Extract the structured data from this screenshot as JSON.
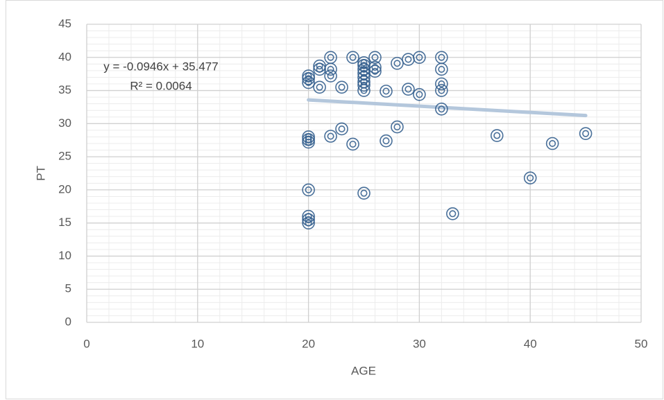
{
  "chart_data": {
    "type": "scatter",
    "x_label": "AGE",
    "y_label": "PT",
    "x": [
      20,
      20,
      20,
      20,
      20,
      20,
      20,
      20,
      20,
      20,
      21,
      21,
      21,
      22,
      22,
      22,
      22,
      23,
      23,
      24,
      24,
      25,
      25,
      25,
      25,
      25,
      25,
      25,
      25,
      25,
      26,
      26,
      26,
      27,
      27,
      28,
      28,
      29,
      29,
      30,
      30,
      32,
      32,
      32,
      32,
      32,
      33,
      37,
      40,
      42,
      45
    ],
    "values": [
      37.2,
      36.8,
      36.2,
      28,
      27.6,
      27.2,
      20,
      16,
      15.5,
      15,
      38.7,
      38.2,
      35.5,
      40,
      38.2,
      37.2,
      28.1,
      35.5,
      29.2,
      40,
      26.9,
      39.2,
      38.8,
      38.2,
      37.6,
      37,
      36.3,
      35.8,
      35,
      19.5,
      40,
      38.5,
      37.9,
      34.9,
      27.4,
      39.1,
      29.5,
      39.7,
      35.2,
      40,
      34.4,
      40,
      38.2,
      36,
      35,
      32.2,
      16.4,
      28.2,
      21.8,
      27,
      28.5
    ],
    "color": "#35608f",
    "xlim": [
      0,
      50
    ],
    "xticks": [
      0,
      10,
      20,
      30,
      40,
      50
    ],
    "ylim": [
      0,
      45
    ],
    "yticks": [
      0,
      5,
      10,
      15,
      20,
      25,
      30,
      35,
      40,
      45
    ],
    "grid": true,
    "minor_grid": true,
    "trendline": {
      "slope": -0.0946,
      "intercept": 35.477,
      "x_range": [
        20,
        45
      ],
      "color": "#b4c7dc",
      "equation": "y = -0.0946x + 35.477",
      "r_squared": "R² = 0.0064"
    }
  }
}
